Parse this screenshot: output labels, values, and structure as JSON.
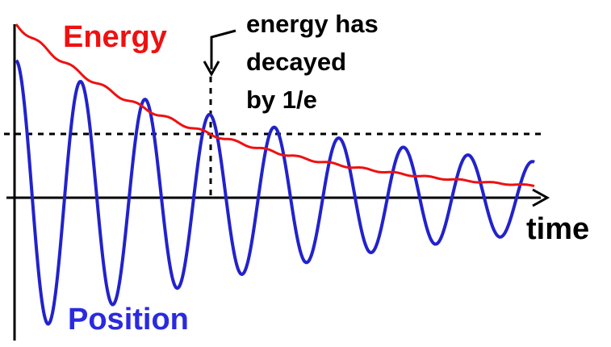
{
  "labels": {
    "energy": "Energy",
    "position": "Position",
    "time": "time",
    "annotation": [
      "energy has",
      "decayed",
      "by 1/e"
    ]
  }
}
